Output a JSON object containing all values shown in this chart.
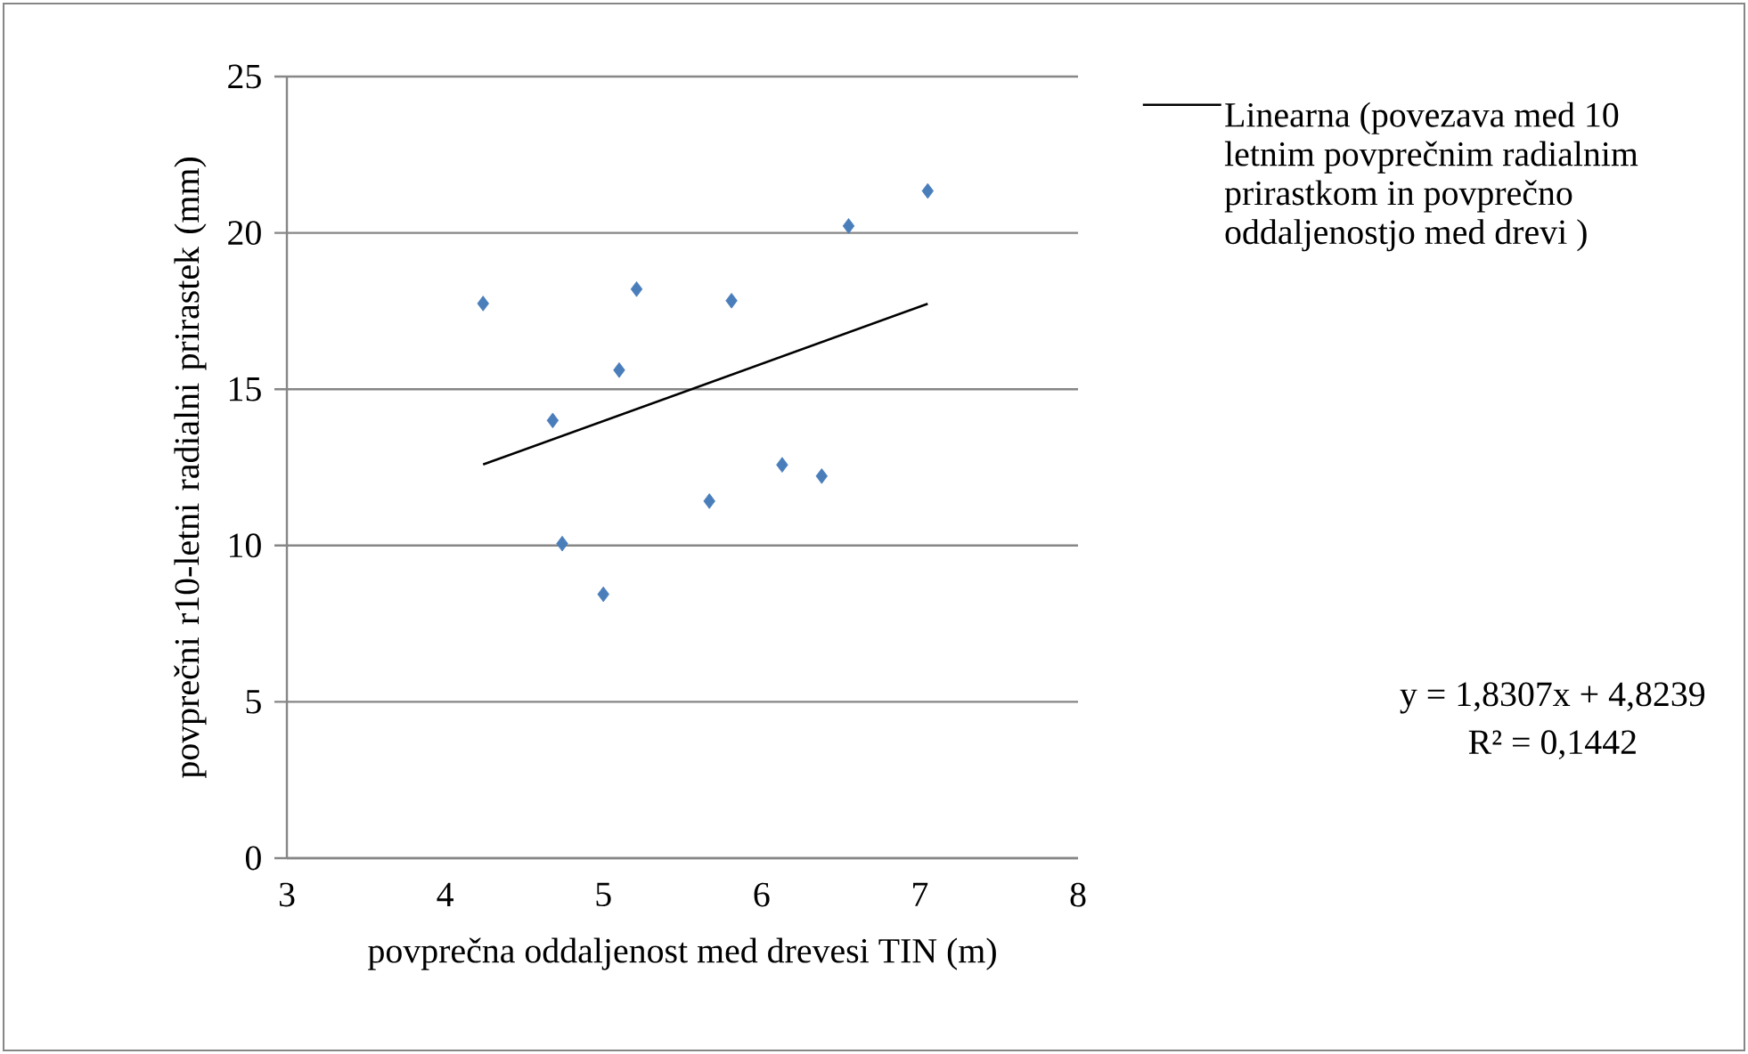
{
  "chart_data": {
    "type": "scatter",
    "xlabel": "povprečna oddaljenost med drevesi TIN (m)",
    "ylabel": "povprečni r10-letni radialni prirastek (mm)",
    "xlim": [
      3,
      8
    ],
    "xticks": [
      3,
      4,
      5,
      6,
      7,
      8
    ],
    "ylim": [
      0,
      25
    ],
    "yticks": [
      0,
      5,
      10,
      15,
      20,
      25
    ],
    "grid": "y",
    "legend": "right",
    "series": [
      {
        "color": "#4a7ebb",
        "marker": "diamond",
        "x": [
          4.24,
          4.68,
          4.74,
          5.0,
          5.1,
          5.21,
          5.67,
          5.81,
          6.13,
          6.38,
          6.55,
          7.05
        ],
        "values": [
          17.74,
          14.0,
          10.06,
          8.44,
          15.61,
          18.2,
          11.42,
          17.83,
          12.58,
          12.22,
          20.22,
          21.34
        ]
      },
      {
        "type": "line",
        "marker": "none",
        "name": "Linearna (povezava med 10 letnim povprečnim radialnim prirastkom in povprečno oddaljenostjo med drevi )",
        "color": "#000000",
        "x": [
          4.24,
          7.05
        ],
        "values": [
          12.59,
          17.73
        ]
      }
    ],
    "annotations": [
      "y = 1,8307x + 4,8239",
      "R² = 0,1442"
    ]
  }
}
